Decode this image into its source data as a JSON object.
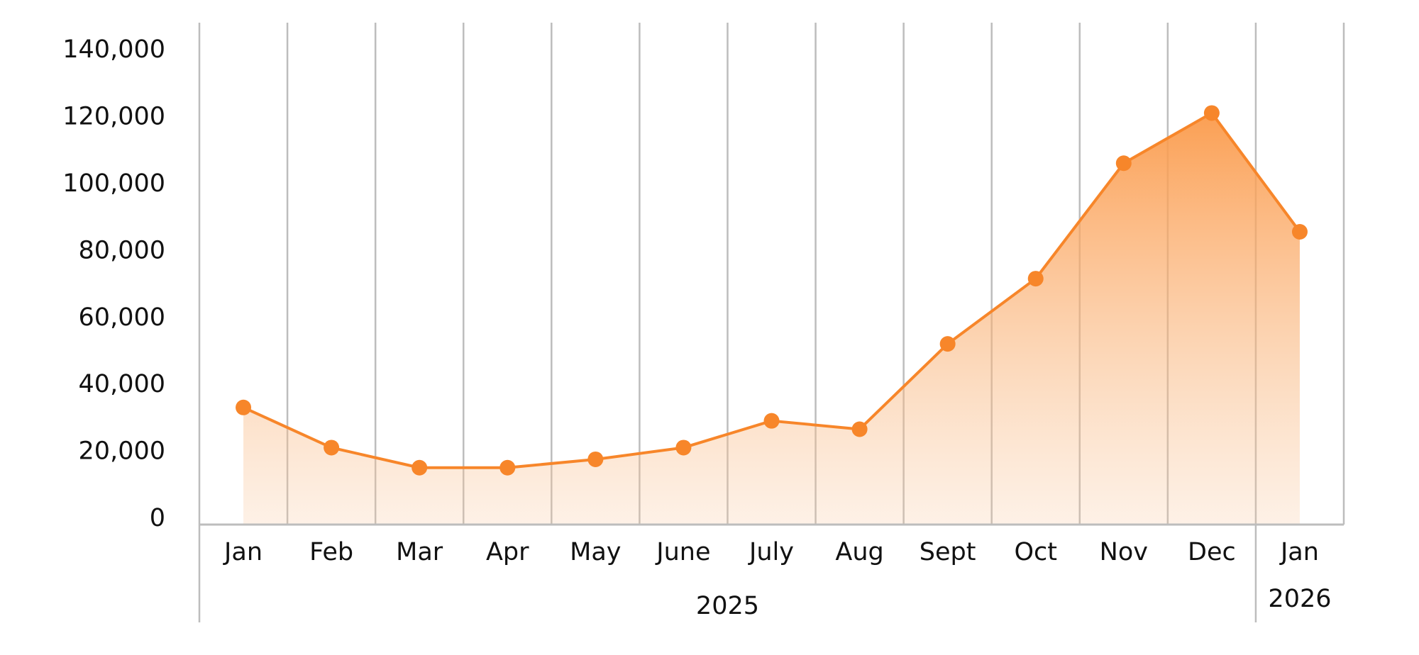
{
  "chart_data": {
    "type": "area",
    "groups": [
      {
        "label": "2025",
        "categories": [
          "Jan",
          "Feb",
          "Mar",
          "Apr",
          "May",
          "June",
          "July",
          "Aug",
          "Sept",
          "Oct",
          "Nov",
          "Dec"
        ]
      },
      {
        "label": "2026",
        "categories": [
          "Jan"
        ]
      }
    ],
    "series": [
      {
        "color": "#f7862a",
        "values": [
          35000,
          23000,
          17000,
          17000,
          19500,
          23000,
          31000,
          28500,
          54000,
          73500,
          108000,
          123000,
          87500
        ]
      }
    ],
    "ylim": [
      0,
      150000
    ],
    "yticks": [
      {
        "value": 0,
        "label": "0"
      },
      {
        "value": 20000,
        "label": "20,000"
      },
      {
        "value": 40000,
        "label": "40,000"
      },
      {
        "value": 60000,
        "label": "60,000"
      },
      {
        "value": 80000,
        "label": "80,000"
      },
      {
        "value": 100000,
        "label": "100,000"
      },
      {
        "value": 120000,
        "label": "120,000"
      },
      {
        "value": 140000,
        "label": "140,000"
      }
    ],
    "grid": true
  }
}
